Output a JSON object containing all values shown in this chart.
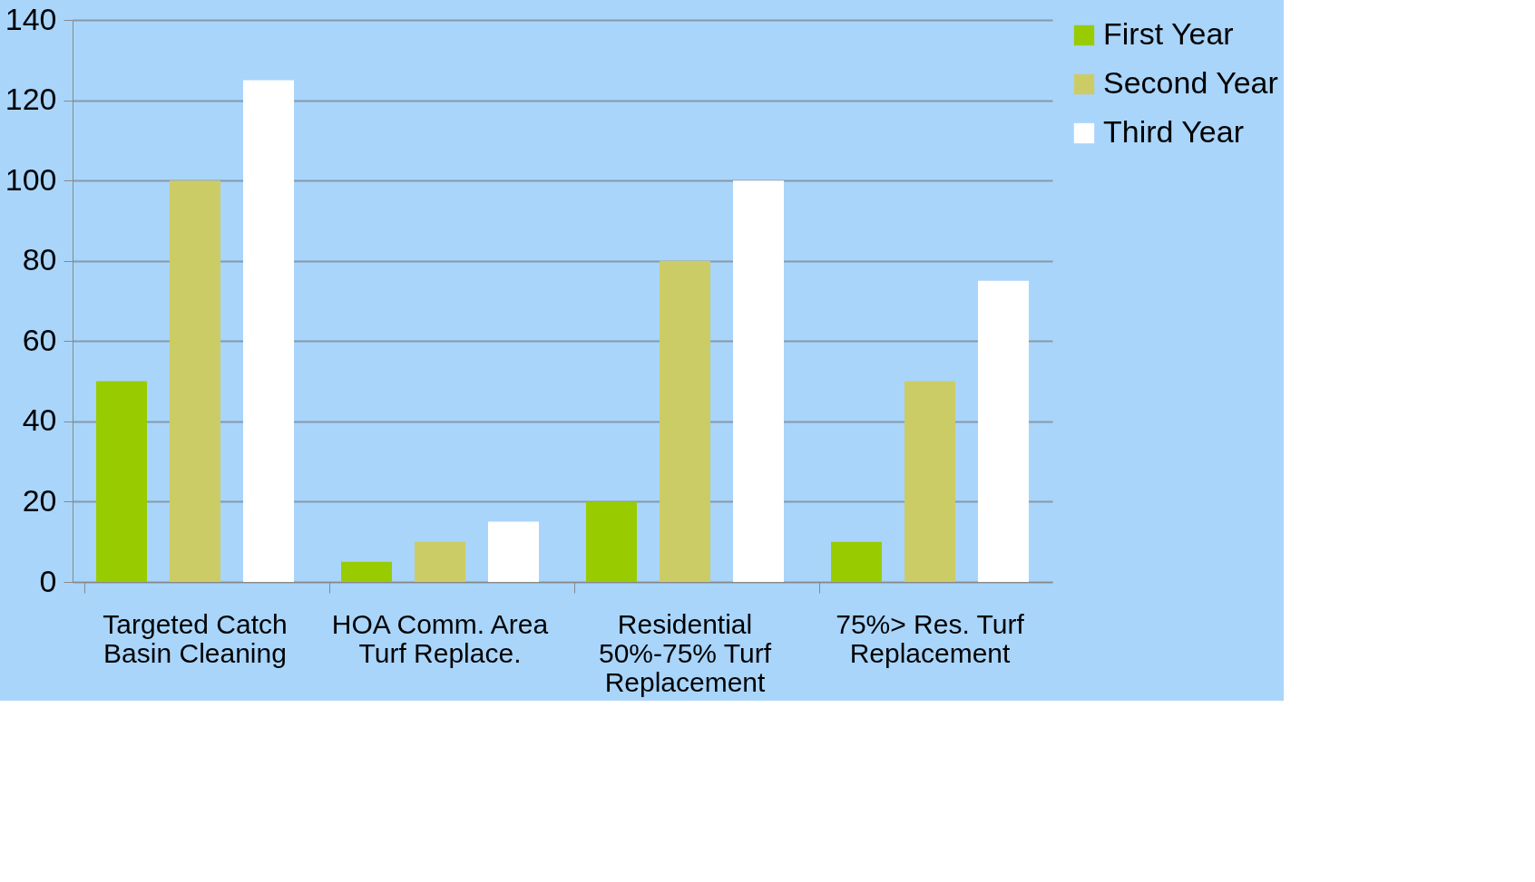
{
  "chart_data": {
    "type": "bar",
    "categories": [
      "Targeted Catch Basin Cleaning",
      "HOA Comm. Area Turf Replace.",
      "Residential 50%-75% Turf Replacement",
      "75%> Res. Turf Replacement"
    ],
    "series": [
      {
        "name": "First Year",
        "color": "#99cc00",
        "values": [
          50,
          5,
          20,
          10
        ]
      },
      {
        "name": "Second Year",
        "color": "#cccc66",
        "values": [
          100,
          10,
          80,
          50
        ]
      },
      {
        "name": "Third Year",
        "color": "#ffffff",
        "values": [
          125,
          15,
          100,
          75
        ]
      }
    ],
    "ylim": [
      0,
      140
    ],
    "yticks": [
      0,
      20,
      40,
      60,
      80,
      100,
      120,
      140
    ],
    "grid": "y",
    "legend": "right"
  }
}
